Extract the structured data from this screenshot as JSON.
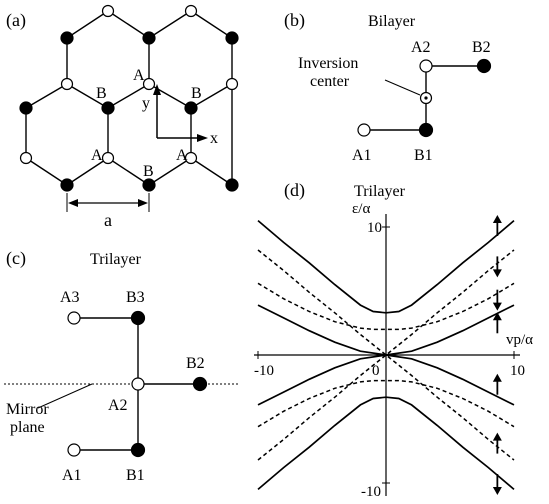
{
  "panel_a": {
    "label": "(a)",
    "sites": {
      "A_center": "A",
      "B_left": "B",
      "B_right": "B",
      "A_lower_left": "A",
      "A_lower_right": "A",
      "B_bottom": "B"
    },
    "axes": {
      "x": "x",
      "y": "y"
    },
    "lattice_const": "a"
  },
  "panel_b": {
    "label": "(b)",
    "title": "Bilayer",
    "annotation_line1": "Inversion",
    "annotation_line2": "center",
    "sites": {
      "A1": "A1",
      "B1": "B1",
      "A2": "A2",
      "B2": "B2"
    }
  },
  "panel_c": {
    "label": "(c)",
    "title": "Trilayer",
    "sites": {
      "A1": "A1",
      "B1": "B1",
      "A2": "A2",
      "B2": "B2",
      "A3": "A3",
      "B3": "B3"
    },
    "mirror_line1": "Mirror",
    "mirror_line2": "plane"
  },
  "panel_d": {
    "label": "(d)",
    "title": "Trilayer",
    "ylabel": "ε/α",
    "xlabel": "vp/α",
    "tick_top": "10",
    "tick_bottom": "-10",
    "tick_left": "-10",
    "tick_zero": "0",
    "tick_right": "10"
  },
  "chart_data": {
    "type": "line",
    "title": "Trilayer",
    "xlabel": "vp/α",
    "ylabel": "ε/α",
    "xlim": [
      -10,
      10
    ],
    "ylim": [
      -10,
      10
    ],
    "x_ticks": [
      -10,
      0,
      10
    ],
    "y_ticks": [
      -10,
      10
    ],
    "series": [
      {
        "style": "solid",
        "x": [
          -10,
          -8,
          -6,
          -4,
          -2,
          -1,
          0,
          1,
          2,
          4,
          6,
          8,
          10
        ],
        "y": [
          10.5,
          8.8,
          7.2,
          5.5,
          3.9,
          3.4,
          3.3,
          3.4,
          3.9,
          5.5,
          7.2,
          8.8,
          10.5
        ]
      },
      {
        "style": "solid",
        "x": [
          -10,
          -8,
          -6,
          -4,
          -2,
          -1,
          0,
          1,
          2,
          4,
          6,
          8,
          10
        ],
        "y": [
          -10.5,
          -8.8,
          -7.2,
          -5.5,
          -3.9,
          -3.4,
          -3.3,
          -3.4,
          -3.9,
          -5.5,
          -7.2,
          -8.8,
          -10.5
        ]
      },
      {
        "style": "solid",
        "x": [
          -10,
          -8,
          -6,
          -4,
          -2,
          0,
          2,
          4,
          6,
          8,
          10
        ],
        "y": [
          3.9,
          2.9,
          1.9,
          1.0,
          0.3,
          0.0,
          0.3,
          1.0,
          1.9,
          2.9,
          3.9
        ]
      },
      {
        "style": "solid",
        "x": [
          -10,
          -8,
          -6,
          -4,
          -2,
          0,
          2,
          4,
          6,
          8,
          10
        ],
        "y": [
          -3.9,
          -2.9,
          -1.9,
          -1.0,
          -0.3,
          0.0,
          -0.3,
          -1.0,
          -1.9,
          -2.9,
          -3.9
        ]
      },
      {
        "style": "dashed",
        "x": [
          -10,
          -8,
          -6,
          -4,
          -2,
          0,
          2,
          4,
          6,
          8,
          10
        ],
        "y": [
          8.2,
          6.6,
          4.9,
          3.3,
          1.6,
          0.0,
          1.6,
          3.3,
          4.9,
          6.6,
          8.2
        ]
      },
      {
        "style": "dashed",
        "x": [
          -10,
          -8,
          -6,
          -4,
          -2,
          0,
          2,
          4,
          6,
          8,
          10
        ],
        "y": [
          -8.2,
          -6.6,
          -4.9,
          -3.3,
          -1.6,
          0.0,
          -1.6,
          -3.3,
          -4.9,
          -6.6,
          -8.2
        ]
      },
      {
        "style": "dashed",
        "x": [
          -10,
          -8,
          -6,
          -4,
          -2,
          -1,
          0,
          1,
          2,
          4,
          6,
          8,
          10
        ],
        "y": [
          5.6,
          4.4,
          3.4,
          2.6,
          2.1,
          2.0,
          2.0,
          2.0,
          2.1,
          2.6,
          3.4,
          4.4,
          5.6
        ]
      },
      {
        "style": "dashed",
        "x": [
          -10,
          -8,
          -6,
          -4,
          -2,
          -1,
          0,
          1,
          2,
          4,
          6,
          8,
          10
        ],
        "y": [
          -5.6,
          -4.4,
          -3.4,
          -2.6,
          -2.1,
          -2.0,
          -2.0,
          -2.0,
          -2.1,
          -2.6,
          -3.4,
          -4.4,
          -5.6
        ]
      }
    ],
    "arrows": [
      {
        "x": 8.7,
        "y": 10.0,
        "dir": "up"
      },
      {
        "x": 8.7,
        "y": 7.0,
        "dir": "down"
      },
      {
        "x": 8.7,
        "y": 4.4,
        "dir": "down"
      },
      {
        "x": 8.7,
        "y": 2.4,
        "dir": "up"
      },
      {
        "x": 8.7,
        "y": -2.4,
        "dir": "up"
      },
      {
        "x": 8.7,
        "y": -7.0,
        "dir": "up"
      },
      {
        "x": 8.7,
        "y": -10.0,
        "dir": "down"
      }
    ]
  }
}
